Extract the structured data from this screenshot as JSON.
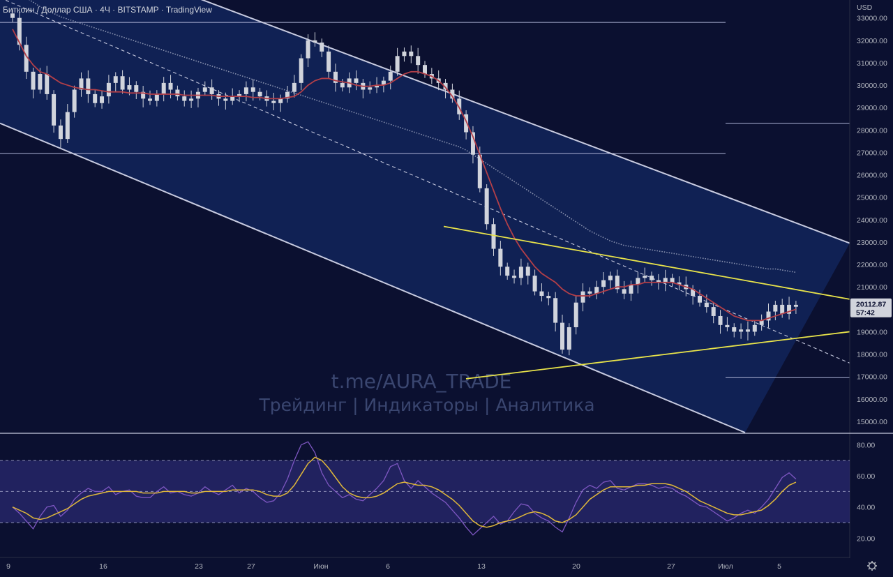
{
  "header": {
    "title": "Биткоин / Доллар США · 4Ч · BITSTAMP · TradingView"
  },
  "currency_label": "USD",
  "price_tag": {
    "price": "20112.87",
    "countdown": "57:42"
  },
  "watermark": {
    "line1": "t.me/AURA_TRADE",
    "line2": "Трейдинг | Индикаторы | Аналитика"
  },
  "colors": {
    "background": "#0b1030",
    "channel_fill": "#12245a",
    "candle": "#d1d4dc",
    "ma_red": "#b33f48",
    "triangle": "#e8e34a",
    "rsi_line": "#7e57c2",
    "rsi_ma": "#e0b83a"
  },
  "icons": {
    "settings": "gear-icon"
  },
  "chart_data": [
    {
      "type": "candlestick",
      "title": "Биткоин / Доллар США · 4Ч · BITSTAMP · TradingView",
      "ylabel": "USD",
      "ylim": [
        14500,
        33800
      ],
      "y_ticks": [
        "33000.00",
        "32000.00",
        "31000.00",
        "30000.00",
        "29000.00",
        "28000.00",
        "27000.00",
        "26000.00",
        "25000.00",
        "24000.00",
        "23000.00",
        "22000.00",
        "21000.00",
        "20000.00",
        "19000.00",
        "18000.00",
        "17000.00",
        "16000.00",
        "15000.00"
      ],
      "x_ticks": [
        "9",
        "16",
        "23",
        "27",
        "Июн",
        "6",
        "13",
        "20",
        "27",
        "Июл",
        "5"
      ],
      "x": [
        0,
        10,
        20,
        30,
        40,
        50,
        60,
        70,
        80,
        90,
        100,
        110,
        120,
        130,
        140,
        150,
        160,
        170,
        180,
        190,
        200,
        210,
        220,
        230,
        240,
        250,
        260,
        270,
        280,
        290,
        300,
        310,
        320,
        330,
        340,
        350,
        360,
        370,
        380,
        390,
        400,
        410,
        420,
        430,
        440,
        450,
        460,
        470,
        480,
        490,
        500,
        510,
        520,
        530,
        540,
        550,
        560,
        570,
        580,
        590,
        600,
        610,
        620,
        630,
        640,
        650,
        660,
        670,
        680,
        690,
        700,
        710,
        720,
        730,
        740,
        750,
        760,
        770,
        780,
        790,
        800,
        810,
        820,
        830,
        840,
        850,
        860,
        870,
        880,
        890,
        900,
        910,
        920,
        930,
        940,
        950,
        960,
        970,
        980,
        990,
        1000,
        1010,
        1020,
        1030,
        1040,
        1050,
        1060,
        1070,
        1080,
        1090,
        1100,
        1110,
        1120,
        1130,
        1140
      ],
      "close_price": [
        33000,
        31800,
        30600,
        29800,
        30500,
        29600,
        28200,
        27600,
        28800,
        29800,
        30300,
        29600,
        29200,
        29500,
        30100,
        30400,
        29800,
        30000,
        29700,
        29400,
        29300,
        29600,
        30100,
        29800,
        29500,
        29300,
        29400,
        29700,
        29900,
        29600,
        29400,
        29300,
        29500,
        29600,
        29900,
        29700,
        29500,
        29300,
        29200,
        29400,
        29700,
        30100,
        31200,
        32000,
        31900,
        31500,
        30600,
        30100,
        29900,
        30300,
        30100,
        29800,
        29900,
        30000,
        30200,
        30600,
        31300,
        31500,
        31300,
        30900,
        30500,
        30300,
        30100,
        29800,
        29400,
        28700,
        27900,
        26900,
        25400,
        23800,
        22700,
        21900,
        21500,
        21400,
        21900,
        21500,
        20800,
        20600,
        20500,
        19400,
        18200,
        19200,
        20300,
        20800,
        20700,
        21000,
        21300,
        21500,
        20900,
        20700,
        21100,
        21400,
        21500,
        21300,
        21200,
        21400,
        21200,
        21100,
        20900,
        20600,
        20300,
        20100,
        19700,
        19300,
        19200,
        19000,
        19100,
        19000,
        19300,
        19500,
        19900,
        20200,
        19800,
        20200,
        20112.87
      ],
      "series": [
        {
          "name": "",
          "style": "red moving average",
          "values": [
            32500,
            31900,
            31300,
            30900,
            30600,
            30500,
            30300,
            30100,
            30000,
            29900,
            29850,
            29800,
            29800,
            29750,
            29700,
            29700,
            29700,
            29650,
            29650,
            29650,
            29600,
            29600,
            29600,
            29600,
            29600,
            29550,
            29550,
            29550,
            29550,
            29550,
            29500,
            29500,
            29500,
            29500,
            29500,
            29450,
            29450,
            29400,
            29400,
            29400,
            29450,
            29500,
            29700,
            30000,
            30200,
            30300,
            30300,
            30200,
            30150,
            30100,
            30000,
            29950,
            29950,
            30000,
            30000,
            30100,
            30300,
            30500,
            30600,
            30600,
            30500,
            30400,
            30200,
            29900,
            29500,
            29000,
            28400,
            27700,
            26900,
            26100,
            25300,
            24500,
            23800,
            23200,
            22700,
            22300,
            21900,
            21600,
            21400,
            21200,
            20900,
            20700,
            20600,
            20600,
            20600,
            20700,
            20800,
            20900,
            21000,
            21000,
            21100,
            21100,
            21200,
            21200,
            21200,
            21200,
            21200,
            21100,
            21000,
            20900,
            20700,
            20500,
            20300,
            20100,
            19900,
            19700,
            19600,
            19500,
            19500,
            19500,
            19600,
            19700,
            19800,
            19900,
            20000
          ]
        },
        {
          "name": "",
          "style": "gray dotted moving average",
          "values": [
            34300,
            34100,
            33900,
            33700,
            33500,
            33350,
            33200,
            33050,
            32950,
            32850,
            32750,
            32650,
            32550,
            32450,
            32350,
            32250,
            32150,
            32050,
            31950,
            31850,
            31750,
            31650,
            31550,
            31450,
            31350,
            31250,
            31150,
            31050,
            30950,
            30850,
            30750,
            30650,
            30550,
            30450,
            30350,
            30250,
            30150,
            30050,
            29950,
            29850,
            29750,
            29650,
            29550,
            29450,
            29350,
            29250,
            29150,
            29050,
            28950,
            28850,
            28750,
            28650,
            28550,
            28450,
            28350,
            28250,
            28150,
            28050,
            27950,
            27850,
            27750,
            27650,
            27550,
            27450,
            27350,
            27250,
            27100,
            26900,
            26700,
            26500,
            26300,
            26100,
            25900,
            25700,
            25500,
            25300,
            25100,
            24900,
            24700,
            24500,
            24300,
            24100,
            23900,
            23700,
            23500,
            23350,
            23200,
            23050,
            22950,
            22850,
            22800,
            22750,
            22700,
            22650,
            22600,
            22550,
            22500,
            22450,
            22400,
            22350,
            22300,
            22250,
            22200,
            22150,
            22100,
            22050,
            22000,
            21950,
            21900,
            21850,
            21800,
            21800,
            21750,
            21700,
            21650
          ]
        }
      ],
      "annotations": {
        "horizontal_levels": [
          32800,
          26950,
          28300,
          16950
        ],
        "channel": {
          "upper": [
            [
              0,
              37200
            ],
            [
              1218,
              22950
            ]
          ],
          "lower": [
            [
              0,
              28300
            ],
            [
              1068,
              14500
            ]
          ],
          "middle_dashed": [
            [
              0,
              33900
            ],
            [
              1218,
              17600
            ]
          ]
        },
        "triangle": {
          "upper": [
            [
              636,
              23700
            ],
            [
              1218,
              20450
            ]
          ],
          "lower": [
            [
              668,
              16900
            ],
            [
              1218,
              19000
            ]
          ]
        }
      },
      "grid": false
    },
    {
      "type": "line",
      "title": "",
      "ylim": [
        8,
        87
      ],
      "y_ticks": [
        "80.00",
        "60.00",
        "40.00",
        "20.00"
      ],
      "bands": [
        30,
        50,
        70
      ],
      "series": [
        {
          "name": "",
          "style": "purple RSI",
          "values": [
            40,
            36,
            31,
            26,
            34,
            40,
            41,
            34,
            38,
            45,
            49,
            52,
            50,
            50,
            53,
            48,
            50,
            51,
            47,
            46,
            46,
            50,
            53,
            49,
            50,
            48,
            47,
            49,
            53,
            50,
            48,
            51,
            54,
            49,
            52,
            50,
            46,
            43,
            44,
            49,
            58,
            70,
            80,
            82,
            75,
            62,
            54,
            50,
            46,
            48,
            45,
            44,
            48,
            52,
            57,
            66,
            68,
            57,
            52,
            57,
            53,
            49,
            46,
            43,
            38,
            33,
            27,
            22,
            26,
            30,
            34,
            29,
            31,
            37,
            42,
            41,
            36,
            33,
            31,
            27,
            24,
            33,
            43,
            51,
            54,
            52,
            56,
            57,
            52,
            51,
            53,
            55,
            55,
            54,
            52,
            53,
            52,
            49,
            47,
            44,
            41,
            40,
            37,
            34,
            31,
            33,
            36,
            38,
            36,
            40,
            45,
            52,
            59,
            62,
            58
          ]
        },
        {
          "name": "",
          "style": "yellow RSI moving average",
          "values": [
            40,
            38,
            36,
            33,
            32,
            33,
            35,
            37,
            39,
            42,
            45,
            47,
            48,
            49,
            50,
            50,
            50,
            50,
            50,
            49,
            49,
            49,
            50,
            50,
            50,
            50,
            49,
            49,
            50,
            50,
            50,
            50,
            51,
            51,
            51,
            51,
            50,
            48,
            47,
            47,
            49,
            54,
            61,
            68,
            72,
            70,
            65,
            59,
            53,
            49,
            47,
            46,
            46,
            47,
            49,
            52,
            55,
            56,
            55,
            54,
            54,
            53,
            51,
            48,
            45,
            41,
            36,
            31,
            28,
            27,
            28,
            30,
            31,
            32,
            34,
            36,
            37,
            36,
            34,
            31,
            30,
            32,
            35,
            40,
            45,
            48,
            51,
            53,
            53,
            53,
            53,
            54,
            54,
            55,
            55,
            55,
            54,
            52,
            50,
            47,
            44,
            42,
            40,
            38,
            36,
            35,
            35,
            36,
            37,
            38,
            41,
            45,
            50,
            54,
            56
          ]
        }
      ],
      "grid": false
    }
  ]
}
